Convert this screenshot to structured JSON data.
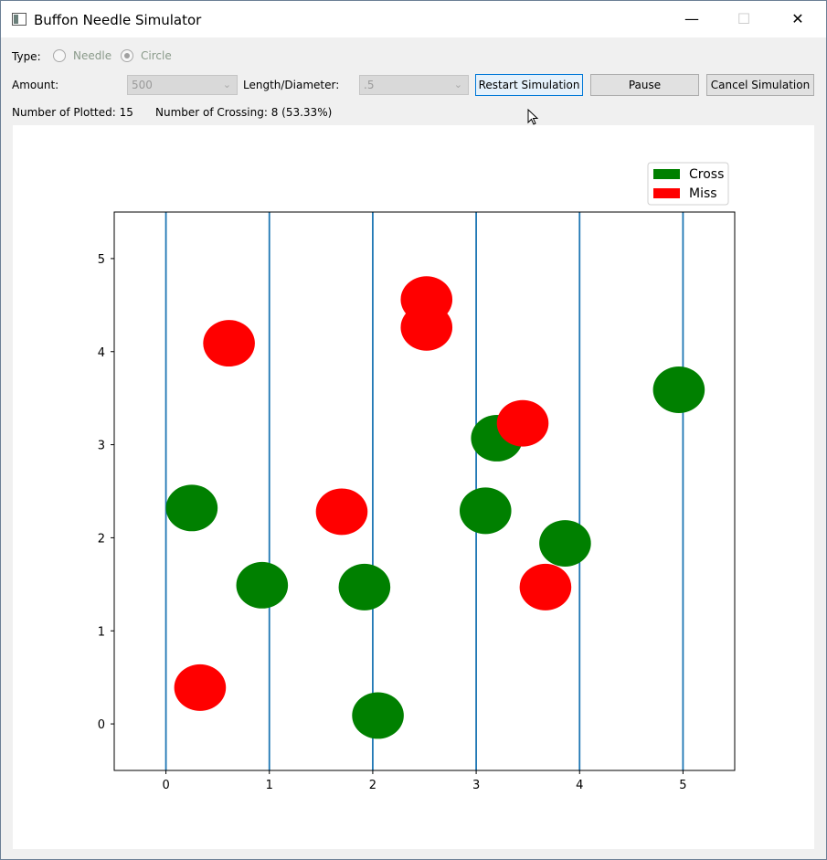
{
  "window": {
    "title": "Buffon Needle Simulator"
  },
  "controls": {
    "type_label": "Type:",
    "needle_label": "Needle",
    "circle_label": "Circle",
    "amount_label": "Amount:",
    "amount_value": "500",
    "length_label": "Length/Diameter:",
    "length_value": ".5",
    "restart_label": "Restart Simulation",
    "pause_label": "Pause",
    "cancel_label": "Cancel Simulation"
  },
  "status": {
    "plotted": "Number of Plotted: 15",
    "crossing": "Number of Crossing: 8 (53.33%)"
  },
  "chart_data": {
    "type": "scatter",
    "xlim": [
      -0.5,
      5.5
    ],
    "ylim": [
      -0.5,
      5.5
    ],
    "xticks": [
      0,
      1,
      2,
      3,
      4,
      5
    ],
    "yticks": [
      0,
      1,
      2,
      3,
      4,
      5
    ],
    "vertical_lines": [
      0,
      1,
      2,
      3,
      4,
      5
    ],
    "line_color": "#1f77b4",
    "diameter": 0.5,
    "legend": {
      "placement": "top-right",
      "entries": [
        {
          "label": "Cross",
          "color": "#008000"
        },
        {
          "label": "Miss",
          "color": "#ff0000"
        }
      ]
    },
    "points": [
      {
        "x": 0.25,
        "y": 2.32,
        "cls": "cross"
      },
      {
        "x": 0.93,
        "y": 1.49,
        "cls": "cross"
      },
      {
        "x": 1.92,
        "y": 1.47,
        "cls": "cross"
      },
      {
        "x": 2.05,
        "y": 0.09,
        "cls": "cross"
      },
      {
        "x": 3.09,
        "y": 2.29,
        "cls": "cross"
      },
      {
        "x": 3.2,
        "y": 3.07,
        "cls": "cross"
      },
      {
        "x": 3.86,
        "y": 1.94,
        "cls": "cross"
      },
      {
        "x": 4.96,
        "y": 3.59,
        "cls": "cross"
      },
      {
        "x": 0.33,
        "y": 0.39,
        "cls": "miss"
      },
      {
        "x": 0.61,
        "y": 4.09,
        "cls": "miss"
      },
      {
        "x": 1.7,
        "y": 2.28,
        "cls": "miss"
      },
      {
        "x": 2.52,
        "y": 4.26,
        "cls": "miss"
      },
      {
        "x": 2.52,
        "y": 4.56,
        "cls": "miss"
      },
      {
        "x": 3.45,
        "y": 3.23,
        "cls": "miss"
      },
      {
        "x": 3.67,
        "y": 1.47,
        "cls": "miss"
      }
    ]
  }
}
